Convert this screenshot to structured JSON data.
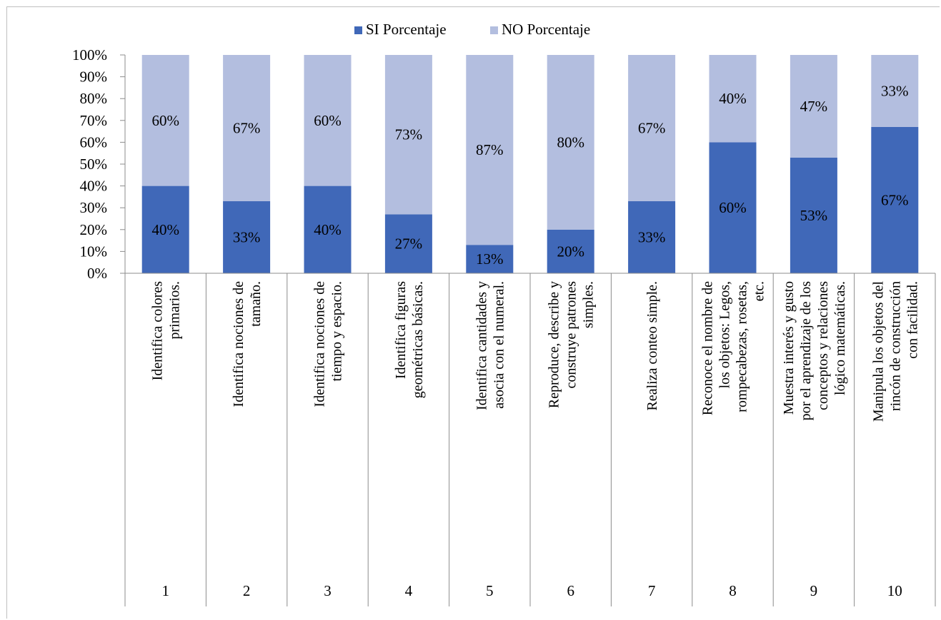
{
  "chart_data": {
    "type": "bar",
    "stacked": true,
    "percent_stacked": true,
    "title": "",
    "xlabel": "",
    "ylabel": "",
    "ylim": [
      0,
      100
    ],
    "yticks": [
      "0%",
      "10%",
      "20%",
      "30%",
      "40%",
      "50%",
      "60%",
      "70%",
      "80%",
      "90%",
      "100%"
    ],
    "legend_position": "top",
    "grid": false,
    "categories": [
      {
        "label": "Identifica colores primarios.",
        "number": "1"
      },
      {
        "label": "Identifica nociones de tamaño.",
        "number": "2"
      },
      {
        "label": "Identifica nociones de tiempo y espacio.",
        "number": "3"
      },
      {
        "label": "Identifica  figuras geométricas básicas.",
        "number": "4"
      },
      {
        "label": "Identifica cantidades y asocia con el numeral.",
        "number": "5"
      },
      {
        "label": "Reproduce, describe y construye patrones simples.",
        "number": "6"
      },
      {
        "label": "Realiza conteo simple.",
        "number": "7"
      },
      {
        "label": "Reconoce el nombre de los objetos: Legos, rompecabezas, rosetas, etc.",
        "number": "8"
      },
      {
        "label": "Muestra interés y gusto por el aprendizaje de los conceptos y relaciones lógico matemáticas.",
        "number": "9"
      },
      {
        "label": "Manipula los objetos del rincón de construcción con facilidad.",
        "number": "10"
      }
    ],
    "series": [
      {
        "name": "SI Porcentaje",
        "color": "#4068b8",
        "values": [
          40,
          33,
          40,
          27,
          13,
          20,
          33,
          60,
          53,
          67
        ],
        "labels": [
          "40%",
          "33%",
          "40%",
          "27%",
          "13%",
          "20%",
          "33%",
          "60%",
          "53%",
          "67%"
        ]
      },
      {
        "name": "NO Porcentaje",
        "color": "#b3bedf",
        "values": [
          60,
          67,
          60,
          73,
          87,
          80,
          67,
          40,
          47,
          33
        ],
        "labels": [
          "60%",
          "67%",
          "60%",
          "73%",
          "87%",
          "80%",
          "67%",
          "40%",
          "47%",
          "33%"
        ]
      }
    ]
  }
}
